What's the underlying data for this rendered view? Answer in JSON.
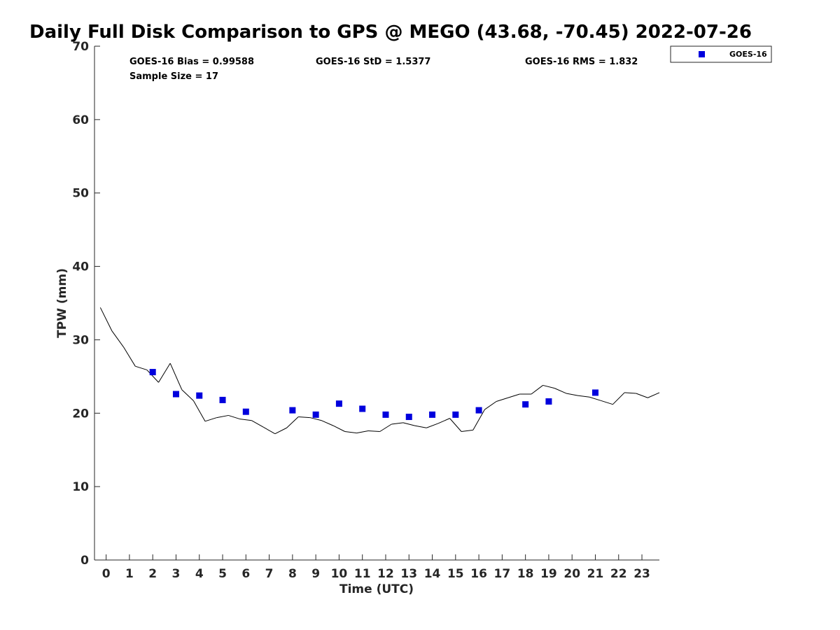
{
  "chart_data": {
    "type": "scatter",
    "title": "Daily Full Disk Comparison to GPS @ MEGO (43.68, -70.45) 2022-07-26",
    "xlabel": "Time (UTC)",
    "ylabel": "TPW (mm)",
    "xlim": [
      -0.5,
      23.75
    ],
    "ylim": [
      0,
      70
    ],
    "x_ticks": [
      {
        "value": 0,
        "label": "0"
      },
      {
        "value": 1,
        "label": "1"
      },
      {
        "value": 2,
        "label": "2"
      },
      {
        "value": 3,
        "label": "3"
      },
      {
        "value": 4,
        "label": "4"
      },
      {
        "value": 5,
        "label": "5"
      },
      {
        "value": 6,
        "label": "6"
      },
      {
        "value": 7,
        "label": "7"
      },
      {
        "value": 8,
        "label": "8"
      },
      {
        "value": 9,
        "label": "9"
      },
      {
        "value": 10,
        "label": "10"
      },
      {
        "value": 11,
        "label": "11"
      },
      {
        "value": 12,
        "label": "12"
      },
      {
        "value": 13,
        "label": "13"
      },
      {
        "value": 14,
        "label": "14"
      },
      {
        "value": 15,
        "label": "15"
      },
      {
        "value": 16,
        "label": "16"
      },
      {
        "value": 17,
        "label": "17"
      },
      {
        "value": 18,
        "label": "18"
      },
      {
        "value": 19,
        "label": "19"
      },
      {
        "value": 20,
        "label": "20"
      },
      {
        "value": 21,
        "label": "21"
      },
      {
        "value": 22,
        "label": "22"
      },
      {
        "value": 23,
        "label": "23"
      }
    ],
    "y_ticks": [
      {
        "value": 0,
        "label": "0"
      },
      {
        "value": 10,
        "label": "10"
      },
      {
        "value": 20,
        "label": "20"
      },
      {
        "value": 30,
        "label": "30"
      },
      {
        "value": 40,
        "label": "40"
      },
      {
        "value": 50,
        "label": "50"
      },
      {
        "value": 60,
        "label": "60"
      },
      {
        "value": 70,
        "label": "70"
      }
    ],
    "grid": false,
    "legend_position": "top-right-outside",
    "stats": {
      "bias": "GOES-16 Bias = 0.99588",
      "std": "GOES-16 StD = 1.5377",
      "rms": "GOES-16 RMS = 1.832",
      "sample_size": "Sample Size = 17"
    },
    "series": [
      {
        "type": "line",
        "color": "#000000",
        "x": [
          -0.25,
          0.25,
          0.75,
          1.25,
          1.75,
          2.25,
          2.75,
          3.25,
          3.75,
          4.25,
          4.75,
          5.25,
          5.75,
          6.25,
          6.75,
          7.25,
          7.75,
          8.25,
          8.75,
          9.25,
          9.75,
          10.25,
          10.75,
          11.25,
          11.75,
          12.25,
          12.75,
          13.25,
          13.75,
          14.25,
          14.75,
          15.25,
          15.75,
          16.25,
          16.75,
          17.25,
          17.75,
          18.25,
          18.75,
          19.25,
          19.75,
          20.25,
          20.75,
          21.25,
          21.75,
          22.25,
          22.75,
          23.25,
          23.75
        ],
        "y": [
          34.4,
          31.2,
          29.0,
          26.4,
          25.9,
          24.2,
          26.8,
          23.2,
          21.7,
          18.9,
          19.4,
          19.7,
          19.2,
          19.0,
          18.1,
          17.2,
          18.0,
          19.5,
          19.4,
          19.0,
          18.3,
          17.5,
          17.3,
          17.6,
          17.5,
          18.5,
          18.7,
          18.3,
          18.0,
          18.6,
          19.3,
          17.5,
          17.7,
          20.5,
          21.6,
          22.1,
          22.6,
          22.6,
          23.8,
          23.4,
          22.7,
          22.4,
          22.2,
          21.7,
          21.2,
          22.8,
          22.7,
          22.1,
          22.8
        ]
      },
      {
        "name": "GOES-16",
        "type": "scatter",
        "color": "#0000dd",
        "marker": "square",
        "x": [
          2,
          3,
          4,
          5,
          6,
          8,
          9,
          10,
          11,
          12,
          13,
          14,
          15,
          16,
          18,
          19,
          21
        ],
        "y": [
          25.6,
          22.6,
          22.4,
          21.8,
          20.2,
          20.4,
          19.8,
          21.3,
          20.6,
          19.8,
          19.5,
          19.8,
          19.8,
          20.4,
          21.2,
          21.6,
          22.8
        ]
      }
    ]
  }
}
